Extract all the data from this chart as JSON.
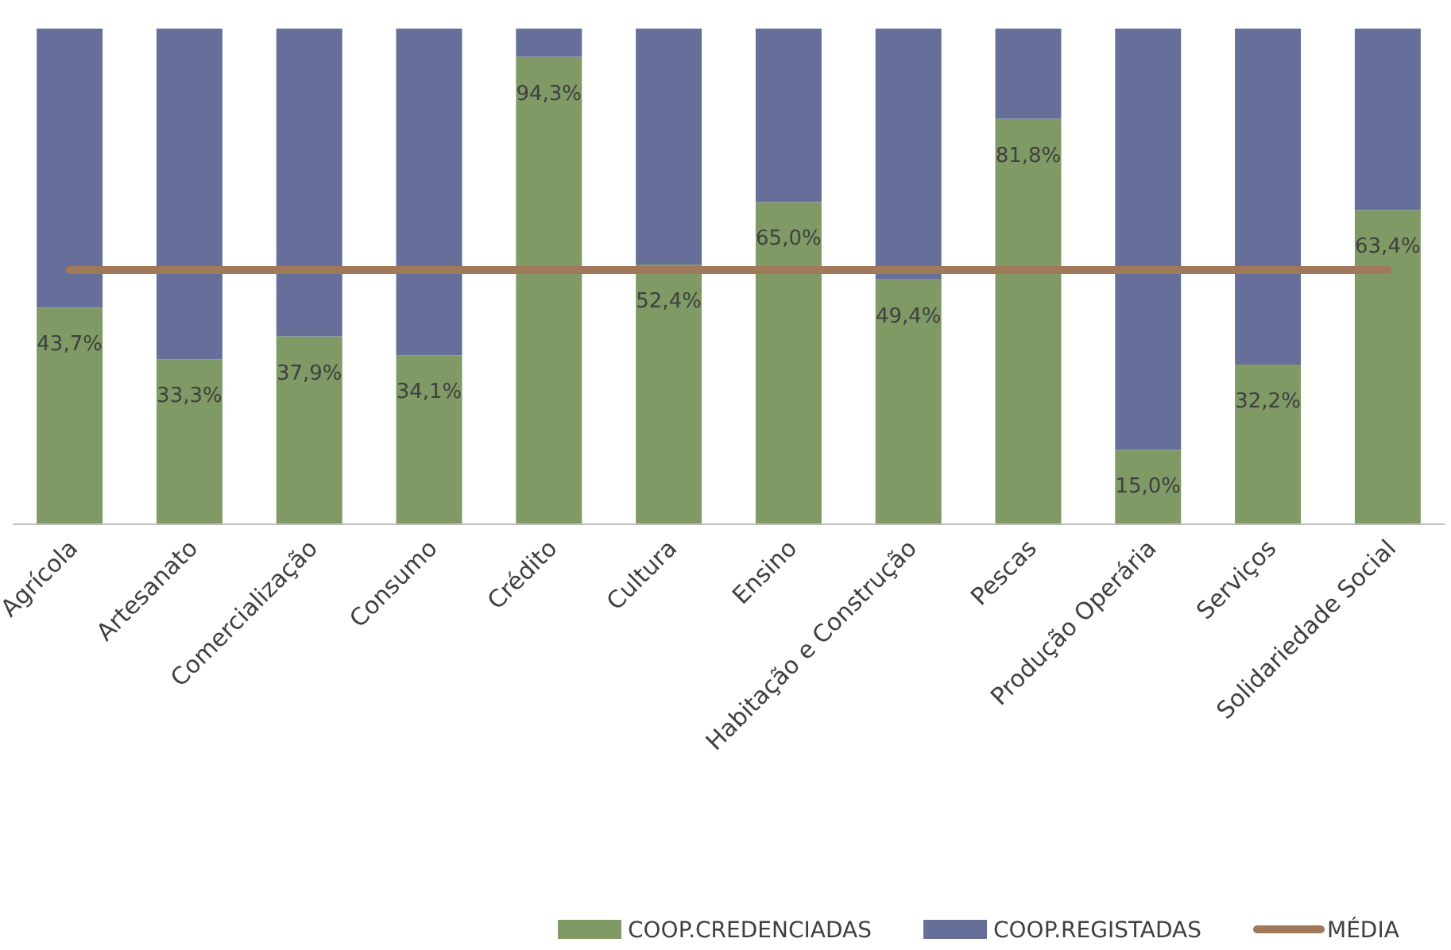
{
  "chart_data": {
    "type": "bar",
    "stacked": true,
    "categories": [
      "Agrícola",
      "Artesanato",
      "Comercialização",
      "Consumo",
      "Crédito",
      "Cultura",
      "Ensino",
      "Habitação e Construção",
      "Pescas",
      "Produção Operária",
      "Serviços",
      "Solidariedade Social"
    ],
    "series": [
      {
        "name": "COOP.CREDENCIADAS",
        "color": "#7f9a65",
        "values": [
          43.7,
          33.3,
          37.9,
          34.1,
          94.3,
          52.4,
          65.0,
          49.4,
          81.8,
          15.0,
          32.2,
          63.4
        ],
        "value_labels": [
          "43,7%",
          "33,3%",
          "37,9%",
          "34,1%",
          "94,3%",
          "52,4%",
          "65,0%",
          "49,4%",
          "81,8%",
          "15,0%",
          "32,2%",
          "63,4%"
        ]
      },
      {
        "name": "COOP.REGISTADAS",
        "color": "#666f99",
        "values": [
          56.3,
          66.7,
          62.1,
          65.9,
          5.7,
          47.6,
          35.0,
          50.6,
          18.2,
          85.0,
          67.8,
          36.6
        ]
      },
      {
        "name": "MÉDIA",
        "type": "line",
        "color": "#a0785a",
        "values": [
          51.3,
          51.3,
          51.3,
          51.3,
          51.3,
          51.3,
          51.3,
          51.3,
          51.3,
          51.3,
          51.3,
          51.3
        ]
      }
    ],
    "legend": "bottom"
  }
}
